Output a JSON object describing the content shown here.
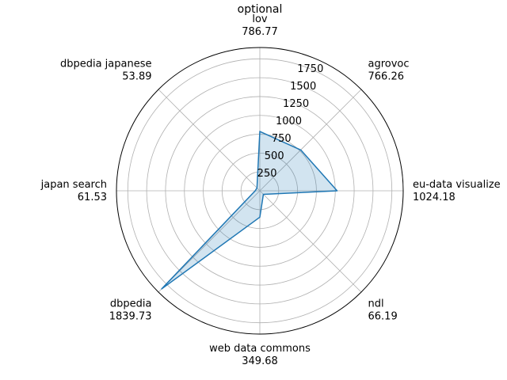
{
  "chart_data": {
    "type": "radar",
    "title": "optional",
    "categories": [
      "lov",
      "agrovoc",
      "eu-data visualize",
      "ndl",
      "web data commons",
      "dbpedia",
      "japan search",
      "dbpedia japanese"
    ],
    "value_labels": [
      "786.77",
      "766.26",
      "1024.18",
      "66.19",
      "349.68",
      "1839.73",
      "61.53",
      "53.89"
    ],
    "values": [
      786.77,
      766.26,
      1024.18,
      66.19,
      349.68,
      1839.73,
      61.53,
      53.89
    ],
    "rmax": 1900,
    "rticks": [
      250,
      500,
      750,
      1000,
      1250,
      1500,
      1750
    ],
    "rtick_labels": [
      "250",
      "500",
      "750",
      "1000",
      "1250",
      "1500",
      "1750"
    ],
    "grid": true,
    "line_color": "#1f77b4",
    "fill_color": "#1f77b4"
  }
}
